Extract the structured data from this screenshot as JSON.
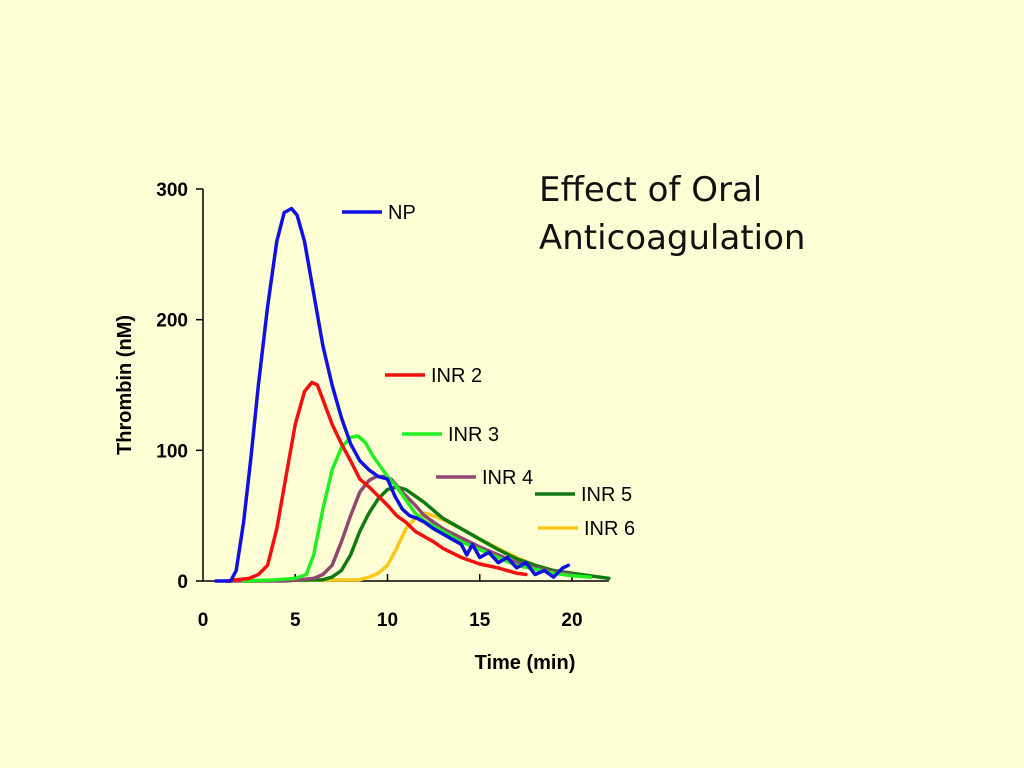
{
  "slide_title_lines": [
    "Effect of Oral",
    "Anticoagulation"
  ],
  "chart_data": {
    "type": "line",
    "title": "Effect of Oral Anticoagulation",
    "xlabel": "Time (min)",
    "ylabel": "Thrombin (nM)",
    "xlim": [
      0,
      22
    ],
    "ylim": [
      0,
      300
    ],
    "xticks": [
      0,
      5,
      10,
      15,
      20
    ],
    "yticks": [
      0,
      100,
      200,
      300
    ],
    "grid": false,
    "legend": "inline-right-of-curves",
    "series": [
      {
        "name": "NP",
        "color": "#1010e0",
        "x": [
          0.7,
          1.5,
          1.8,
          2.2,
          2.6,
          3.0,
          3.5,
          4.0,
          4.4,
          4.8,
          5.1,
          5.5,
          6.0,
          6.5,
          7.0,
          7.5,
          8.0,
          8.5,
          9.0,
          9.5,
          10.0,
          10.4,
          10.8,
          11.2,
          11.6,
          12.0,
          12.5,
          13.0,
          13.5,
          14.0,
          14.3,
          14.6,
          15.0,
          15.5,
          16.0,
          16.5,
          17.0,
          17.5,
          18.0,
          18.5,
          19.0,
          19.5,
          19.8
        ],
        "y": [
          0,
          0,
          8,
          45,
          95,
          150,
          210,
          260,
          282,
          285,
          280,
          260,
          220,
          180,
          150,
          125,
          105,
          92,
          85,
          80,
          78,
          65,
          55,
          50,
          48,
          45,
          40,
          36,
          32,
          28,
          20,
          28,
          18,
          22,
          14,
          18,
          10,
          14,
          5,
          8,
          3,
          10,
          12
        ]
      },
      {
        "name": "INR 2",
        "color": "#f01010",
        "x": [
          1.3,
          2.5,
          3.0,
          3.5,
          4.0,
          4.5,
          5.0,
          5.5,
          5.9,
          6.2,
          6.6,
          7.0,
          7.5,
          8.0,
          8.5,
          9.0,
          9.5,
          10.0,
          10.5,
          11.0,
          11.5,
          12.0,
          12.5,
          13.0,
          14.0,
          15.0,
          16.0,
          17.0,
          17.5
        ],
        "y": [
          0,
          2,
          5,
          12,
          40,
          80,
          120,
          145,
          152,
          150,
          135,
          120,
          105,
          92,
          78,
          72,
          65,
          58,
          50,
          45,
          38,
          34,
          30,
          25,
          18,
          13,
          10,
          6,
          5
        ]
      },
      {
        "name": "INR 3",
        "color": "#20f020",
        "x": [
          2.2,
          4.0,
          5.0,
          5.6,
          6.0,
          6.5,
          7.0,
          7.5,
          8.0,
          8.4,
          8.8,
          9.2,
          9.6,
          10.0,
          10.5,
          11.0,
          11.5,
          12.0,
          13.0,
          14.0,
          15.0,
          16.0,
          17.0,
          18.0,
          19.0,
          20.0,
          21.0
        ],
        "y": [
          0,
          1,
          2,
          5,
          20,
          55,
          85,
          102,
          110,
          111,
          106,
          96,
          88,
          80,
          72,
          62,
          52,
          46,
          38,
          30,
          24,
          18,
          12,
          9,
          6,
          4,
          3
        ]
      },
      {
        "name": "INR 4",
        "color": "#904870",
        "x": [
          1.3,
          4.5,
          6.0,
          6.5,
          7.0,
          7.5,
          8.0,
          8.5,
          9.0,
          9.4,
          9.8,
          10.2,
          10.8,
          11.5,
          12.0,
          13.0,
          14.0,
          15.0,
          16.0,
          17.0,
          18.0,
          19.0,
          20.0
        ],
        "y": [
          0,
          0,
          2,
          5,
          12,
          30,
          50,
          68,
          77,
          80,
          80,
          78,
          68,
          58,
          50,
          40,
          33,
          26,
          20,
          14,
          10,
          7,
          5
        ]
      },
      {
        "name": "INR 5",
        "color": "#107a10",
        "x": [
          2.2,
          6.5,
          7.0,
          7.5,
          8.0,
          8.5,
          9.0,
          9.5,
          10.0,
          10.5,
          11.0,
          11.5,
          12.0,
          13.0,
          14.0,
          15.0,
          16.0,
          17.0,
          18.0,
          19.0,
          20.0,
          21.0,
          21.5,
          22.0
        ],
        "y": [
          0,
          1,
          3,
          8,
          20,
          38,
          52,
          63,
          70,
          72,
          70,
          65,
          60,
          48,
          40,
          32,
          24,
          17,
          12,
          8,
          6,
          4,
          3,
          2
        ]
      },
      {
        "name": "INR 6",
        "color": "#f8c818",
        "x": [
          2.2,
          8.5,
          9.0,
          9.5,
          10.0,
          10.5,
          11.0,
          11.5,
          12.0,
          12.5,
          13.0,
          14.0,
          15.0,
          16.0,
          17.0,
          18.0,
          19.0,
          20.0,
          21.0
        ],
        "y": [
          0,
          1,
          3,
          6,
          12,
          25,
          40,
          48,
          52,
          50,
          47,
          40,
          32,
          25,
          18,
          12,
          8,
          5,
          3
        ]
      }
    ]
  }
}
